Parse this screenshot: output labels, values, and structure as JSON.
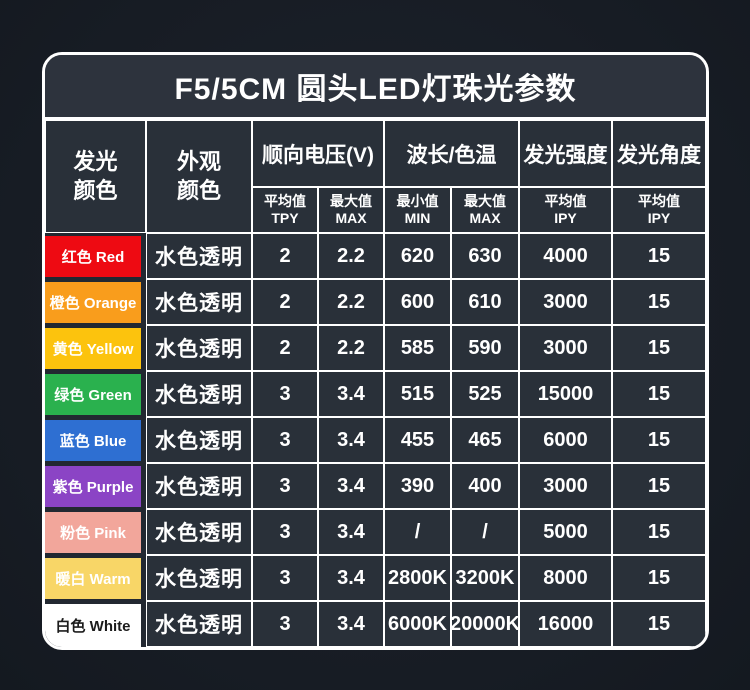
{
  "title": "F5/5CM 圆头LED灯珠光参数",
  "colors": {
    "page_bg": "#1a1f27",
    "container_bg": "#222831",
    "title_bg": "#2d333d",
    "cell_bg": "#293039",
    "grid_line": "#ffffff"
  },
  "header": {
    "emit_color_line1": "发光",
    "emit_color_line2": "颜色",
    "appearance_line1": "外观",
    "appearance_line2": "颜色",
    "group_voltage": "顺向电压(V)",
    "group_wavelength": "波长/色温",
    "group_intensity": "发光强度",
    "group_angle": "发光角度",
    "sub_voltage_avg_zh": "平均值",
    "sub_voltage_avg_en": "TPY",
    "sub_voltage_max_zh": "最大值",
    "sub_voltage_max_en": "MAX",
    "sub_wave_min_zh": "最小值",
    "sub_wave_min_en": "MIN",
    "sub_wave_max_zh": "最大值",
    "sub_wave_max_en": "MAX",
    "sub_intensity_avg_zh": "平均值",
    "sub_intensity_avg_en": "IPY",
    "sub_angle_avg_zh": "平均值",
    "sub_angle_avg_en": "IPY"
  },
  "rows": [
    {
      "label": "红色 Red",
      "swatch_color": "#ee0a12",
      "label_color": "#ffffff",
      "appearance": "水色透明",
      "voltage_avg": "2",
      "voltage_max": "2.2",
      "wavelength_min": "620",
      "wavelength_max": "630",
      "intensity": "4000",
      "angle": "15"
    },
    {
      "label": "橙色 Orange",
      "swatch_color": "#f99d1c",
      "label_color": "#ffffff",
      "appearance": "水色透明",
      "voltage_avg": "2",
      "voltage_max": "2.2",
      "wavelength_min": "600",
      "wavelength_max": "610",
      "intensity": "3000",
      "angle": "15"
    },
    {
      "label": "黄色 Yellow",
      "swatch_color": "#fcc30d",
      "label_color": "#ffffff",
      "appearance": "水色透明",
      "voltage_avg": "2",
      "voltage_max": "2.2",
      "wavelength_min": "585",
      "wavelength_max": "590",
      "intensity": "3000",
      "angle": "15"
    },
    {
      "label": "绿色 Green",
      "swatch_color": "#2ab14e",
      "label_color": "#ffffff",
      "appearance": "水色透明",
      "voltage_avg": "3",
      "voltage_max": "3.4",
      "wavelength_min": "515",
      "wavelength_max": "525",
      "intensity": "15000",
      "angle": "15"
    },
    {
      "label": "蓝色 Blue",
      "swatch_color": "#2e6fd2",
      "label_color": "#ffffff",
      "appearance": "水色透明",
      "voltage_avg": "3",
      "voltage_max": "3.4",
      "wavelength_min": "455",
      "wavelength_max": "465",
      "intensity": "6000",
      "angle": "15"
    },
    {
      "label": "紫色 Purple",
      "swatch_color": "#8b44c5",
      "label_color": "#ffffff",
      "appearance": "水色透明",
      "voltage_avg": "3",
      "voltage_max": "3.4",
      "wavelength_min": "390",
      "wavelength_max": "400",
      "intensity": "3000",
      "angle": "15"
    },
    {
      "label": "粉色 Pink",
      "swatch_color": "#f2a69b",
      "label_color": "#ffffff",
      "appearance": "水色透明",
      "voltage_avg": "3",
      "voltage_max": "3.4",
      "wavelength_min": "/",
      "wavelength_max": "/",
      "intensity": "5000",
      "angle": "15"
    },
    {
      "label": "暖白 Warm",
      "swatch_color": "#f8d667",
      "label_color": "#ffffff",
      "appearance": "水色透明",
      "voltage_avg": "3",
      "voltage_max": "3.4",
      "wavelength_min": "2800K",
      "wavelength_max": "3200K",
      "intensity": "8000",
      "angle": "15"
    },
    {
      "label": "白色 White",
      "swatch_color": "#ffffff",
      "label_color": "#1c1c1c",
      "appearance": "水色透明",
      "voltage_avg": "3",
      "voltage_max": "3.4",
      "wavelength_min": "6000K",
      "wavelength_max": "20000K",
      "intensity": "16000",
      "angle": "15"
    }
  ]
}
